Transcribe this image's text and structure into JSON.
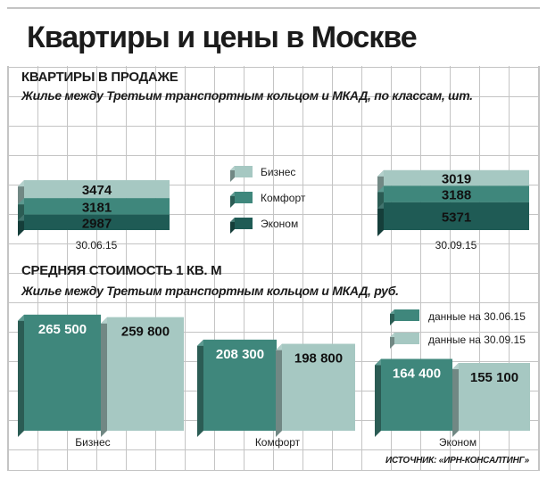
{
  "title": "Квартиры и цены в Москве",
  "section1": {
    "heading": "КВАРТИРЫ В ПРОДАЖЕ",
    "subheading": "Жилье между Третьим транспортным кольцом и МКАД, по классам, шт."
  },
  "section2": {
    "heading": "СРЕДНЯЯ СТОИМОСТЬ 1 КВ. М",
    "subheading": "Жилье между Третьим транспортным кольцом и МКАД, руб."
  },
  "source": "ИСТОЧНИК: «ИРН-КОНСАЛТИНГ»",
  "colors": {
    "biznes": "#a6c8c2",
    "komfort": "#3f877c",
    "ekonom": "#1f5b55",
    "date1": "#3f877c",
    "date2": "#a6c8c2"
  },
  "chart_data": [
    {
      "type": "bar",
      "stacked": true,
      "categories": [
        "30.06.15",
        "30.09.15"
      ],
      "series": [
        {
          "name": "Эконом",
          "values": [
            2987,
            5371
          ],
          "labels": [
            "2987",
            "5371"
          ]
        },
        {
          "name": "Комфорт",
          "values": [
            3181,
            3188
          ],
          "labels": [
            "3181",
            "3188"
          ]
        },
        {
          "name": "Бизнес",
          "values": [
            3474,
            3019
          ],
          "labels": [
            "3474",
            "3019"
          ]
        }
      ],
      "legend_order": [
        "Бизнес",
        "Комфорт",
        "Эконом"
      ],
      "legend_position": "center"
    },
    {
      "type": "bar",
      "categories": [
        "Бизнес",
        "Комфорт",
        "Эконом"
      ],
      "series": [
        {
          "name": "данные на 30.06.15",
          "values": [
            265500,
            208300,
            164400
          ],
          "labels": [
            "265 500",
            "208 300",
            "164 400"
          ]
        },
        {
          "name": "данные на 30.09.15",
          "values": [
            259800,
            198800,
            155100
          ],
          "labels": [
            "259 800",
            "198 800",
            "155 100"
          ]
        }
      ],
      "legend_position": "top-right"
    }
  ]
}
